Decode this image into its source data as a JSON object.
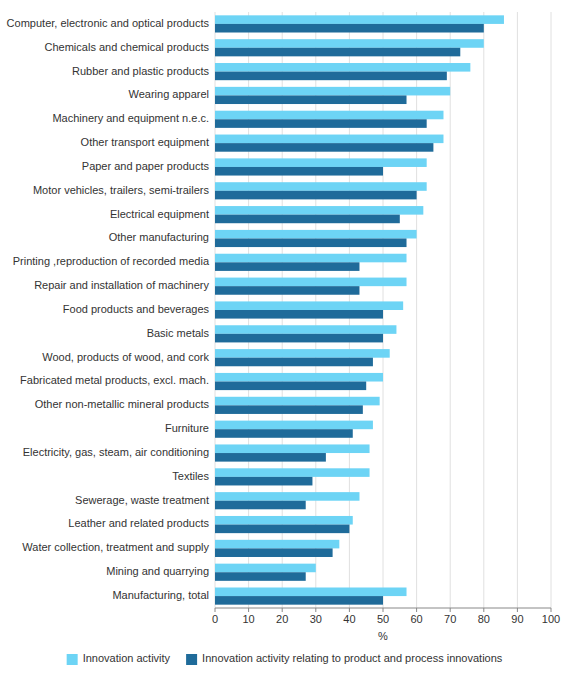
{
  "chart_data": {
    "type": "bar",
    "orientation": "horizontal",
    "categories": [
      "Computer, electronic and optical products",
      "Chemicals and chemical products",
      "Rubber and plastic products",
      "Wearing apparel",
      "Machinery and equipment n.e.c.",
      "Other transport equipment",
      "Paper and paper products",
      "Motor vehicles, trailers, semi-trailers",
      "Electrical equipment",
      "Other manufacturing",
      "Printing ,reproduction of recorded media",
      "Repair and installation of machinery",
      "Food products and beverages",
      "Basic metals",
      "Wood, products of wood, and cork",
      "Fabricated metal products, excl. mach.",
      "Other non-metallic mineral products",
      "Furniture",
      "Electricity, gas, steam, air conditioning",
      "Textiles",
      "Sewerage, waste treatment",
      "Leather and related products",
      "Water collection, treatment and supply",
      "Mining and quarrying",
      "Manufacturing, total"
    ],
    "series": [
      {
        "name": "Innovation activity",
        "color": "#6dd4f5",
        "values": [
          86,
          80,
          76,
          70,
          68,
          68,
          63,
          63,
          62,
          60,
          57,
          57,
          56,
          54,
          52,
          50,
          49,
          47,
          46,
          46,
          43,
          41,
          37,
          30,
          57
        ]
      },
      {
        "name": "Innovation activity relating to product and process innovations",
        "color": "#1f6b9a",
        "values": [
          80,
          73,
          69,
          57,
          63,
          65,
          50,
          60,
          55,
          57,
          43,
          43,
          50,
          50,
          47,
          45,
          44,
          41,
          33,
          29,
          27,
          40,
          35,
          27,
          50
        ]
      }
    ],
    "xlabel": "%",
    "xlim": [
      0,
      100
    ],
    "xticks": [
      0,
      10,
      20,
      30,
      40,
      50,
      60,
      70,
      80,
      90,
      100
    ],
    "grid": true,
    "legend": "bottom"
  }
}
